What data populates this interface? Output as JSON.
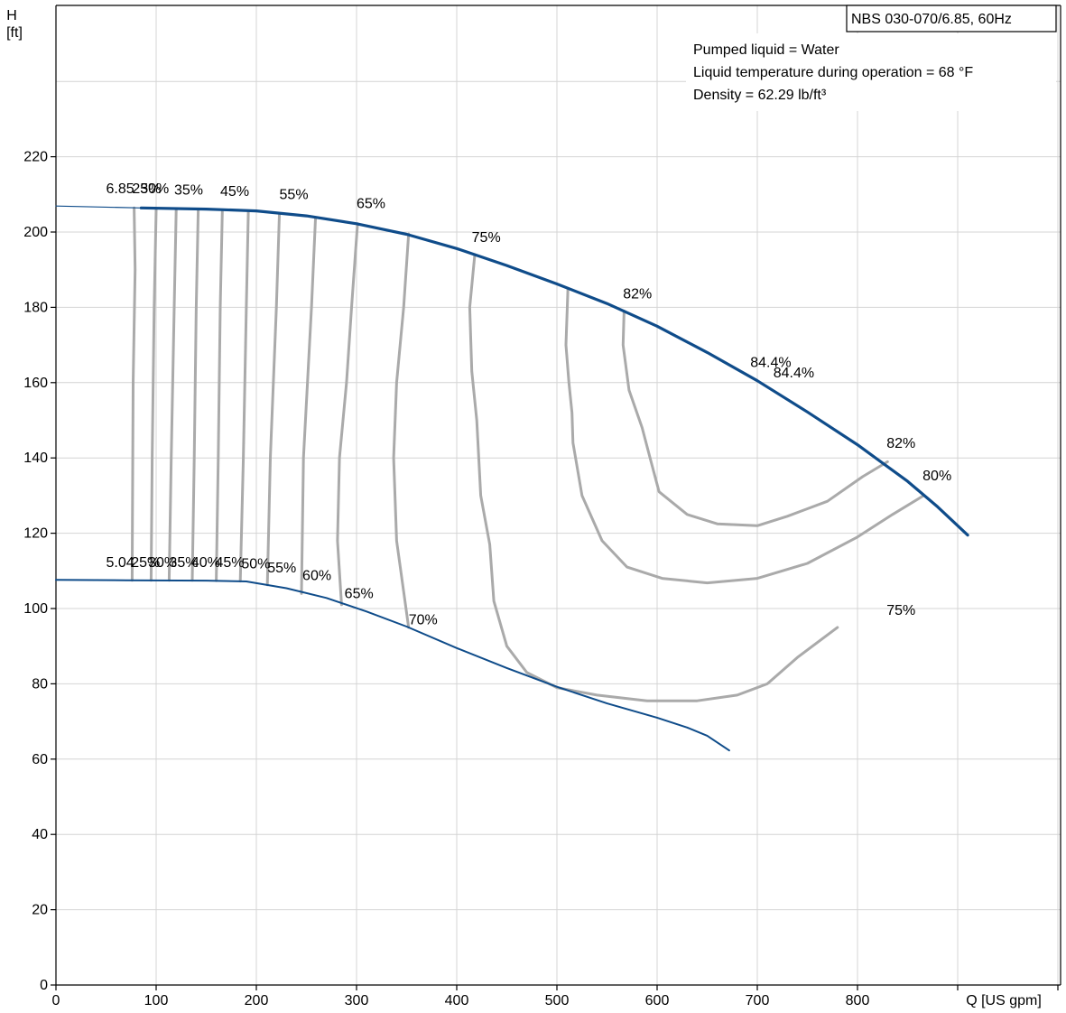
{
  "chart_data": {
    "type": "line",
    "title_box": "NBS 030-070/6.85, 60Hz",
    "info": [
      "Pumped liquid = Water",
      "Liquid temperature during operation = 68 °F",
      "Density = 62.29 lb/ft³"
    ],
    "ylabel_top": "H",
    "ylabel_unit": "[ft]",
    "xlabel": "Q [US gpm]",
    "xlim": [
      0,
      1000
    ],
    "ylim": [
      0,
      240
    ],
    "xticks": [
      0,
      100,
      200,
      300,
      400,
      500,
      600,
      700,
      800
    ],
    "yticks": [
      0,
      20,
      40,
      60,
      80,
      100,
      120,
      140,
      160,
      180,
      200,
      220
    ],
    "grid": true,
    "series": [
      {
        "name": "6.85",
        "color": "#0f4c8a",
        "width": 3.2,
        "points": [
          [
            85,
            206.4
          ],
          [
            150,
            206.1
          ],
          [
            200,
            205.6
          ],
          [
            250,
            204.3
          ],
          [
            300,
            202.2
          ],
          [
            350,
            199.4
          ],
          [
            400,
            195.6
          ],
          [
            450,
            191.1
          ],
          [
            500,
            186.2
          ],
          [
            550,
            181
          ],
          [
            600,
            175
          ],
          [
            650,
            168
          ],
          [
            700,
            160.5
          ],
          [
            750,
            152.2
          ],
          [
            800,
            143.5
          ],
          [
            850,
            133.8
          ],
          [
            880,
            127
          ],
          [
            910,
            119.5
          ]
        ]
      },
      {
        "name": "",
        "color": "#0f4c8a",
        "width": 1.2,
        "points": [
          [
            0,
            206.9
          ],
          [
            85,
            206.4
          ]
        ]
      },
      {
        "name": "5.04",
        "color": "#0f4c8a",
        "width": 2,
        "points": [
          [
            0,
            107.6
          ],
          [
            70,
            107.5
          ],
          [
            150,
            107.4
          ],
          [
            190,
            107.2
          ],
          [
            230,
            105.4
          ],
          [
            270,
            102.8
          ],
          [
            310,
            99.2
          ],
          [
            350,
            95.2
          ],
          [
            400,
            89.5
          ],
          [
            450,
            84.2
          ],
          [
            500,
            79.2
          ],
          [
            550,
            74.8
          ],
          [
            600,
            71
          ],
          [
            630,
            68.4
          ],
          [
            650,
            66.2
          ],
          [
            672,
            62.3
          ]
        ]
      },
      {
        "name": "30%",
        "color": "#aaaaaa",
        "width": 3,
        "points": [
          [
            100,
            205.8
          ],
          [
            98,
            180
          ],
          [
            96,
            140
          ],
          [
            95,
            107.5
          ]
        ]
      },
      {
        "name": "35%",
        "color": "#aaaaaa",
        "width": 3,
        "points": [
          [
            120,
            205.8
          ],
          [
            118,
            180
          ],
          [
            115,
            140
          ],
          [
            113,
            107.5
          ]
        ]
      },
      {
        "name": "40%",
        "color": "#aaaaaa",
        "width": 3,
        "points": [
          [
            142,
            205.7
          ],
          [
            140,
            180
          ],
          [
            138,
            140
          ],
          [
            136,
            107.5
          ]
        ]
      },
      {
        "name": "45%",
        "color": "#aaaaaa",
        "width": 3,
        "points": [
          [
            166,
            205.4
          ],
          [
            164,
            180
          ],
          [
            162,
            140
          ],
          [
            160,
            107.4
          ]
        ]
      },
      {
        "name": "50%",
        "color": "#aaaaaa",
        "width": 3,
        "points": [
          [
            192,
            205.2
          ],
          [
            190,
            180
          ],
          [
            187,
            140
          ],
          [
            184,
            107.3
          ]
        ]
      },
      {
        "name": "25%",
        "color": "#aaaaaa",
        "width": 3,
        "points": [
          [
            78,
            206.4
          ],
          [
            79,
            190
          ],
          [
            77,
            160
          ],
          [
            76,
            107.5
          ]
        ]
      },
      {
        "name": "55%",
        "color": "#aaaaaa",
        "width": 3,
        "points": [
          [
            223,
            204.5
          ],
          [
            220,
            180
          ],
          [
            214,
            140
          ],
          [
            211,
            106.3
          ]
        ]
      },
      {
        "name": "60%",
        "color": "#aaaaaa",
        "width": 3,
        "points": [
          [
            259,
            203.5
          ],
          [
            255,
            180
          ],
          [
            247,
            140
          ],
          [
            245,
            104
          ]
        ]
      },
      {
        "name": "65%",
        "color": "#aaaaaa",
        "width": 3,
        "points": [
          [
            301,
            202.2
          ],
          [
            295,
            180
          ],
          [
            290,
            160
          ],
          [
            283,
            140
          ],
          [
            281,
            118
          ],
          [
            285,
            101
          ]
        ]
      },
      {
        "name": "70%",
        "color": "#aaaaaa",
        "width": 3,
        "points": [
          [
            352,
            199.5
          ],
          [
            347,
            180
          ],
          [
            340,
            160
          ],
          [
            337,
            140
          ],
          [
            340,
            118
          ],
          [
            352,
            95
          ]
        ]
      },
      {
        "name": "75%",
        "color": "#aaaaaa",
        "width": 3,
        "points": [
          [
            418,
            194
          ],
          [
            413,
            180
          ],
          [
            415,
            163
          ],
          [
            420,
            150
          ],
          [
            424,
            130
          ],
          [
            433,
            117
          ],
          [
            437,
            102
          ],
          [
            450,
            90
          ],
          [
            470,
            83
          ],
          [
            500,
            79
          ],
          [
            540,
            77
          ],
          [
            590,
            75.5
          ],
          [
            640,
            75.5
          ],
          [
            680,
            77
          ],
          [
            710,
            80
          ],
          [
            740,
            87
          ],
          [
            780,
            95
          ]
        ]
      },
      {
        "name": "80%",
        "color": "#aaaaaa",
        "width": 3,
        "points": [
          [
            511,
            185
          ],
          [
            509,
            170
          ],
          [
            512,
            160
          ],
          [
            515,
            152
          ],
          [
            516,
            144
          ],
          [
            525,
            130
          ],
          [
            545,
            118
          ],
          [
            570,
            111
          ],
          [
            605,
            108
          ],
          [
            650,
            106.8
          ],
          [
            700,
            108
          ],
          [
            750,
            112
          ],
          [
            800,
            119
          ],
          [
            835,
            125
          ],
          [
            866,
            130
          ]
        ]
      },
      {
        "name": "82%",
        "color": "#aaaaaa",
        "width": 3,
        "points": [
          [
            567,
            179
          ],
          [
            566,
            170
          ],
          [
            572,
            158
          ],
          [
            585,
            148
          ],
          [
            594,
            139
          ],
          [
            602,
            131
          ],
          [
            630,
            125
          ],
          [
            660,
            122.5
          ],
          [
            700,
            122
          ],
          [
            730,
            124.5
          ],
          [
            770,
            128.5
          ],
          [
            805,
            135
          ],
          [
            830,
            139
          ]
        ]
      }
    ],
    "labels": [
      {
        "text": "6.85",
        "x": 50,
        "y": 210.3
      },
      {
        "text": "25%",
        "x": 76,
        "y": 210.3
      },
      {
        "text": "30%",
        "x": 84,
        "y": 210.3
      },
      {
        "text": "35%",
        "x": 118,
        "y": 210
      },
      {
        "text": "45%",
        "x": 164,
        "y": 209.6
      },
      {
        "text": "55%",
        "x": 223,
        "y": 208.7
      },
      {
        "text": "65%",
        "x": 300,
        "y": 206.4
      },
      {
        "text": "75%",
        "x": 415,
        "y": 197.4
      },
      {
        "text": "82%",
        "x": 566,
        "y": 182.4
      },
      {
        "text": "84.4%",
        "x": 693,
        "y": 164.2
      },
      {
        "text": "84.4%",
        "x": 716,
        "y": 161.4
      },
      {
        "text": "82%",
        "x": 829,
        "y": 142.7
      },
      {
        "text": "80%",
        "x": 865,
        "y": 134
      },
      {
        "text": "75%",
        "x": 829,
        "y": 98.3
      },
      {
        "text": "5.04",
        "x": 50,
        "y": 111
      },
      {
        "text": "25%",
        "x": 75,
        "y": 111
      },
      {
        "text": "30%",
        "x": 92,
        "y": 111
      },
      {
        "text": "35%",
        "x": 113,
        "y": 111
      },
      {
        "text": "40%",
        "x": 135,
        "y": 111
      },
      {
        "text": "45%",
        "x": 159,
        "y": 111
      },
      {
        "text": "50%",
        "x": 185,
        "y": 110.7
      },
      {
        "text": "55%",
        "x": 211,
        "y": 109.6
      },
      {
        "text": "60%",
        "x": 246,
        "y": 107.5
      },
      {
        "text": "65%",
        "x": 288,
        "y": 102.8
      },
      {
        "text": "70%",
        "x": 352,
        "y": 95.8
      }
    ]
  }
}
